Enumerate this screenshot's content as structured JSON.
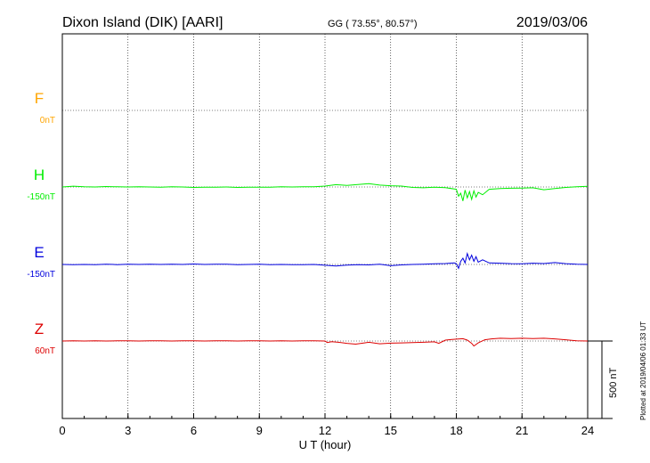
{
  "header": {
    "station": "Dixon Island (DIK)  [AARI]",
    "coords": "GG ( 73.55°,  80.57°)",
    "date": "2019/03/06"
  },
  "footer": {
    "plotted": "Plotted at 2019/04/06 01:33 UT",
    "scale_label": "500 nT"
  },
  "chart_data": {
    "type": "line",
    "title": "Dixon Island (DIK)  [AARI]",
    "xlabel": "U T (hour)",
    "ylabel": "",
    "xlim": [
      0,
      24
    ],
    "x_ticks": [
      "0",
      "3",
      "6",
      "9",
      "12",
      "15",
      "18",
      "21",
      "24"
    ],
    "grid": true,
    "scale_bar_nT": 500,
    "series": [
      {
        "name": "F",
        "offset_label": "0nT",
        "color": "#ffa500",
        "points": []
      },
      {
        "name": "H",
        "offset_label": "-150nT",
        "color": "#00ee00",
        "points": [
          [
            0,
            0
          ],
          [
            0.5,
            5
          ],
          [
            1,
            2
          ],
          [
            1.5,
            0
          ],
          [
            2,
            3
          ],
          [
            2.5,
            1
          ],
          [
            3,
            0
          ],
          [
            3.5,
            2
          ],
          [
            4,
            0
          ],
          [
            4.5,
            -1
          ],
          [
            5,
            1
          ],
          [
            5.5,
            0
          ],
          [
            6,
            -3
          ],
          [
            6.5,
            -1
          ],
          [
            7,
            -2
          ],
          [
            7.5,
            0
          ],
          [
            8,
            -3
          ],
          [
            8.5,
            -1
          ],
          [
            9,
            -2
          ],
          [
            9.5,
            -2
          ],
          [
            10,
            1
          ],
          [
            10.5,
            0
          ],
          [
            11,
            2
          ],
          [
            11.5,
            2
          ],
          [
            12,
            6
          ],
          [
            12.5,
            15
          ],
          [
            13,
            10
          ],
          [
            13.5,
            16
          ],
          [
            14,
            22
          ],
          [
            14.5,
            12
          ],
          [
            15,
            8
          ],
          [
            15.5,
            6
          ],
          [
            16,
            -3
          ],
          [
            16.5,
            -5
          ],
          [
            17,
            -2
          ],
          [
            17.5,
            -4
          ],
          [
            18,
            -15
          ],
          [
            18.1,
            -60
          ],
          [
            18.2,
            -40
          ],
          [
            18.3,
            -90
          ],
          [
            18.4,
            -20
          ],
          [
            18.5,
            -70
          ],
          [
            18.6,
            -30
          ],
          [
            18.7,
            -80
          ],
          [
            18.8,
            -25
          ],
          [
            18.9,
            -65
          ],
          [
            19,
            -35
          ],
          [
            19.2,
            -50
          ],
          [
            19.5,
            -15
          ],
          [
            20,
            -10
          ],
          [
            20.5,
            -8
          ],
          [
            21,
            -7
          ],
          [
            21.5,
            -5
          ],
          [
            22,
            -18
          ],
          [
            22.5,
            -10
          ],
          [
            23,
            -3
          ],
          [
            23.5,
            2
          ],
          [
            24,
            4
          ]
        ]
      },
      {
        "name": "E",
        "offset_label": "-150nT",
        "color": "#0000dd",
        "points": [
          [
            0,
            0
          ],
          [
            0.5,
            -2
          ],
          [
            1,
            0
          ],
          [
            1.5,
            -1
          ],
          [
            2,
            2
          ],
          [
            2.5,
            -1
          ],
          [
            3,
            1
          ],
          [
            3.5,
            0
          ],
          [
            4,
            2
          ],
          [
            4.5,
            0
          ],
          [
            5,
            1
          ],
          [
            5.5,
            0
          ],
          [
            6,
            3
          ],
          [
            6.5,
            0
          ],
          [
            7,
            2
          ],
          [
            7.5,
            1
          ],
          [
            8,
            -1
          ],
          [
            8.5,
            0
          ],
          [
            9,
            1
          ],
          [
            9.5,
            -1
          ],
          [
            10,
            0
          ],
          [
            10.5,
            -2
          ],
          [
            11,
            -1
          ],
          [
            11.5,
            0
          ],
          [
            12,
            -5
          ],
          [
            12.5,
            -10
          ],
          [
            13,
            -4
          ],
          [
            13.5,
            -2
          ],
          [
            14,
            -3
          ],
          [
            14.5,
            2
          ],
          [
            15,
            -8
          ],
          [
            15.5,
            -3
          ],
          [
            16,
            0
          ],
          [
            16.5,
            2
          ],
          [
            17,
            4
          ],
          [
            17.5,
            6
          ],
          [
            17.9,
            10
          ],
          [
            18,
            5
          ],
          [
            18.1,
            -25
          ],
          [
            18.2,
            20
          ],
          [
            18.3,
            40
          ],
          [
            18.4,
            10
          ],
          [
            18.5,
            70
          ],
          [
            18.6,
            30
          ],
          [
            18.7,
            60
          ],
          [
            18.8,
            20
          ],
          [
            18.9,
            50
          ],
          [
            19,
            15
          ],
          [
            19.2,
            30
          ],
          [
            19.5,
            10
          ],
          [
            20,
            8
          ],
          [
            20.5,
            5
          ],
          [
            21,
            4
          ],
          [
            21.5,
            8
          ],
          [
            22,
            6
          ],
          [
            22.5,
            12
          ],
          [
            23,
            5
          ],
          [
            23.5,
            1
          ],
          [
            24,
            0
          ]
        ]
      },
      {
        "name": "Z",
        "offset_label": "60nT",
        "color": "#dd0000",
        "points": [
          [
            0,
            0
          ],
          [
            0.5,
            1
          ],
          [
            1,
            0
          ],
          [
            1.5,
            1
          ],
          [
            2,
            0
          ],
          [
            2.5,
            1
          ],
          [
            3,
            1
          ],
          [
            3.5,
            0
          ],
          [
            4,
            1
          ],
          [
            4.5,
            1
          ],
          [
            5,
            0
          ],
          [
            5.5,
            1
          ],
          [
            6,
            1
          ],
          [
            6.5,
            0
          ],
          [
            7,
            1
          ],
          [
            7.5,
            1
          ],
          [
            8,
            0
          ],
          [
            8.5,
            1
          ],
          [
            9,
            1
          ],
          [
            9.5,
            0
          ],
          [
            10,
            1
          ],
          [
            10.5,
            0
          ],
          [
            11,
            1
          ],
          [
            11.5,
            1
          ],
          [
            12,
            0
          ],
          [
            12.1,
            -10
          ],
          [
            12.3,
            -4
          ],
          [
            12.6,
            -8
          ],
          [
            13,
            -15
          ],
          [
            13.4,
            -20
          ],
          [
            13.8,
            -12
          ],
          [
            14,
            -8
          ],
          [
            14.5,
            -18
          ],
          [
            15,
            -14
          ],
          [
            15.5,
            -12
          ],
          [
            16,
            -10
          ],
          [
            16.5,
            -8
          ],
          [
            17,
            -5
          ],
          [
            17.2,
            -15
          ],
          [
            17.5,
            6
          ],
          [
            17.8,
            10
          ],
          [
            18,
            12
          ],
          [
            18.3,
            15
          ],
          [
            18.5,
            6
          ],
          [
            18.7,
            -15
          ],
          [
            18.8,
            -32
          ],
          [
            19,
            -12
          ],
          [
            19.3,
            8
          ],
          [
            19.6,
            14
          ],
          [
            20,
            18
          ],
          [
            20.5,
            16
          ],
          [
            21,
            18
          ],
          [
            21.5,
            16
          ],
          [
            22,
            18
          ],
          [
            22.5,
            14
          ],
          [
            23,
            8
          ],
          [
            23.5,
            1
          ],
          [
            24,
            0
          ]
        ]
      }
    ]
  }
}
